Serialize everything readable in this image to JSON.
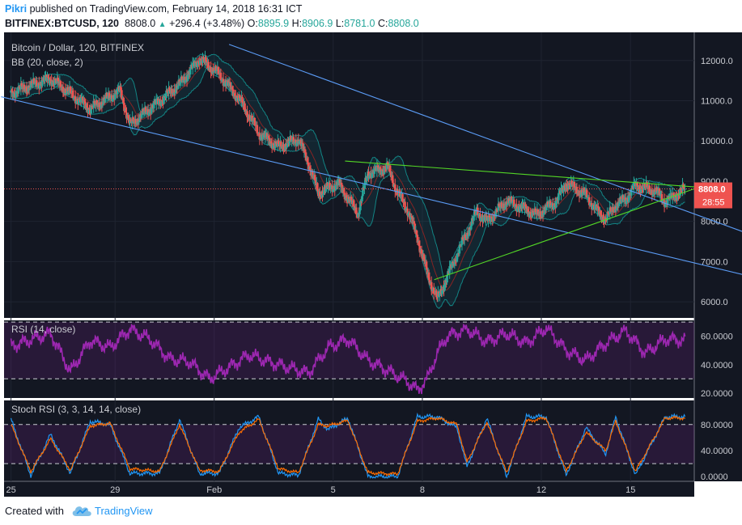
{
  "header": {
    "author": "Pikri",
    "published_text": "published on TradingView.com, February 14, 2018 16:31 ICT",
    "symbol": "BITFINEX:BTCUSD, 120",
    "last_price": "8808.0",
    "change": "+296.4 (+3.48%)",
    "o_label": "O:",
    "o_value": "8895.9",
    "h_label": "H:",
    "h_value": "8906.9",
    "l_label": "L:",
    "l_value": "8781.0",
    "c_label": "C:",
    "c_value": "8808.0"
  },
  "footer": {
    "created_with": "Created with",
    "brand": "TradingView"
  },
  "colors": {
    "background": "#131722",
    "up": "#26a69a",
    "down": "#ef5350",
    "bb_basis": "#872323",
    "bb_band": "#138484",
    "bb_fill": "#198b9c",
    "channel": "#5b9cf6",
    "triangle": "#53d626",
    "rsi": "#9c27b0",
    "stoch_k": "#2196f3",
    "stoch_d": "#ff6d00"
  },
  "chart_data": [
    {
      "type": "candlestick",
      "title": "Bitcoin / Dollar, 120, BITFINEX",
      "indicator_label": "BB (20, close, 2)",
      "last_price_label": "8808.0",
      "countdown_label": "28:55",
      "y_ticks": [
        "12000.0",
        "11000.0",
        "10000.0",
        "9000.0",
        "8000.0",
        "7000.0",
        "6000.0"
      ],
      "ylim": [
        5600,
        12700
      ],
      "x_ticks": [
        "25",
        "29",
        "Feb",
        "5",
        "8",
        "12",
        "15"
      ],
      "points": [
        [
          0,
          11200
        ],
        [
          4,
          11550
        ],
        [
          8,
          10800
        ],
        [
          11,
          11250
        ],
        [
          12,
          10400
        ],
        [
          15,
          11000
        ],
        [
          17,
          11400
        ],
        [
          19,
          12050
        ],
        [
          21,
          11650
        ],
        [
          23,
          11050
        ],
        [
          25,
          10200
        ],
        [
          27,
          9850
        ],
        [
          29,
          10050
        ],
        [
          30,
          9450
        ],
        [
          31,
          8700
        ],
        [
          33,
          8950
        ],
        [
          35,
          8200
        ],
        [
          36,
          9200
        ],
        [
          38,
          9350
        ],
        [
          39,
          8700
        ],
        [
          40,
          8300
        ],
        [
          41,
          7600
        ],
        [
          42,
          6700
        ],
        [
          43,
          6050
        ],
        [
          45,
          7200
        ],
        [
          46,
          7700
        ],
        [
          47,
          8250
        ],
        [
          48,
          8000
        ],
        [
          50,
          8500
        ],
        [
          52,
          8300
        ],
        [
          53,
          8150
        ],
        [
          55,
          8500
        ],
        [
          56,
          8950
        ],
        [
          58,
          8650
        ],
        [
          59,
          8300
        ],
        [
          60,
          8050
        ],
        [
          61,
          8400
        ],
        [
          62,
          8550
        ],
        [
          63,
          8900
        ],
        [
          65,
          8750
        ],
        [
          66,
          8500
        ],
        [
          67,
          8650
        ],
        [
          68,
          8808
        ]
      ],
      "trendlines": [
        {
          "name": "channel-upper",
          "start": [
            22.0,
            12400
          ],
          "end": [
            76.0,
            7550
          ]
        },
        {
          "name": "channel-lower",
          "start": [
            -1.0,
            11100
          ],
          "end": [
            76.0,
            6550
          ]
        },
        {
          "name": "triangle-upper",
          "start": [
            33.7,
            9500
          ],
          "end": [
            69.4,
            8850
          ]
        },
        {
          "name": "triangle-lower",
          "start": [
            42.7,
            6550
          ],
          "end": [
            69.4,
            8850
          ]
        }
      ]
    },
    {
      "type": "line",
      "title": "RSI (14, close)",
      "y_ticks": [
        "60.0000",
        "40.0000",
        "20.0000"
      ],
      "ylim": [
        16.5,
        71.2
      ],
      "bands": [
        30,
        70
      ],
      "values": [
        [
          0,
          53
        ],
        [
          4,
          62
        ],
        [
          6,
          35
        ],
        [
          8,
          57
        ],
        [
          10,
          52
        ],
        [
          12,
          65
        ],
        [
          14,
          58
        ],
        [
          16,
          44
        ],
        [
          18,
          42
        ],
        [
          20,
          30
        ],
        [
          22,
          38
        ],
        [
          24,
          47
        ],
        [
          26,
          42
        ],
        [
          28,
          38
        ],
        [
          30,
          34
        ],
        [
          32,
          52
        ],
        [
          34,
          58
        ],
        [
          36,
          43
        ],
        [
          38,
          36
        ],
        [
          40,
          28
        ],
        [
          41,
          22
        ],
        [
          42,
          30
        ],
        [
          43,
          48
        ],
        [
          44,
          60
        ],
        [
          46,
          65
        ],
        [
          48,
          56
        ],
        [
          50,
          62
        ],
        [
          52,
          55
        ],
        [
          54,
          66
        ],
        [
          56,
          50
        ],
        [
          58,
          43
        ],
        [
          60,
          55
        ],
        [
          62,
          64
        ],
        [
          64,
          48
        ],
        [
          66,
          58
        ],
        [
          68,
          57
        ]
      ]
    },
    {
      "type": "line",
      "title": "Stoch RSI (3, 3, 14, 14, close)",
      "y_ticks": [
        "80.0000",
        "40.0000",
        "0.0000"
      ],
      "ylim": [
        -7.2,
        117
      ],
      "bands": [
        20,
        80
      ],
      "series": [
        {
          "values": [
            [
              0,
              88
            ],
            [
              2,
              2
            ],
            [
              4,
              65
            ],
            [
              6,
              5
            ],
            [
              8,
              85
            ],
            [
              10,
              80
            ],
            [
              12,
              5
            ],
            [
              15,
              5
            ],
            [
              17,
              88
            ],
            [
              19,
              5
            ],
            [
              21,
              5
            ],
            [
              23,
              75
            ],
            [
              25,
              92
            ],
            [
              27,
              5
            ],
            [
              29,
              2
            ],
            [
              31,
              88
            ],
            [
              32,
              72
            ],
            [
              34,
              90
            ],
            [
              36,
              0
            ],
            [
              39,
              0
            ],
            [
              41,
              92
            ],
            [
              43,
              92
            ],
            [
              45,
              75
            ],
            [
              46,
              15
            ],
            [
              48,
              90
            ],
            [
              50,
              0
            ],
            [
              52,
              92
            ],
            [
              54,
              92
            ],
            [
              56,
              2
            ],
            [
              58,
              75
            ],
            [
              60,
              35
            ],
            [
              61,
              92
            ],
            [
              63,
              2
            ],
            [
              66,
              92
            ]
          ]
        },
        {
          "values": [
            [
              0,
              80
            ],
            [
              2,
              8
            ],
            [
              4,
              58
            ],
            [
              6,
              10
            ],
            [
              8,
              78
            ],
            [
              10,
              82
            ],
            [
              12,
              12
            ],
            [
              15,
              8
            ],
            [
              17,
              80
            ],
            [
              19,
              10
            ],
            [
              21,
              8
            ],
            [
              23,
              68
            ],
            [
              25,
              88
            ],
            [
              27,
              12
            ],
            [
              29,
              6
            ],
            [
              31,
              80
            ],
            [
              32,
              78
            ],
            [
              34,
              86
            ],
            [
              36,
              6
            ],
            [
              39,
              4
            ],
            [
              41,
              85
            ],
            [
              43,
              90
            ],
            [
              45,
              80
            ],
            [
              46,
              22
            ],
            [
              48,
              84
            ],
            [
              50,
              6
            ],
            [
              52,
              85
            ],
            [
              54,
              90
            ],
            [
              56,
              8
            ],
            [
              58,
              68
            ],
            [
              60,
              40
            ],
            [
              61,
              85
            ],
            [
              63,
              8
            ],
            [
              66,
              90
            ]
          ]
        }
      ]
    }
  ]
}
